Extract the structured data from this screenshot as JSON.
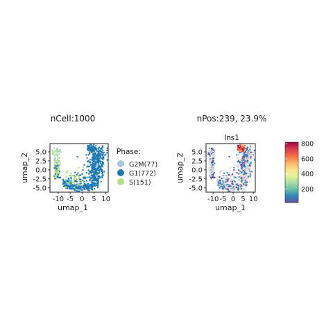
{
  "chart_data": [
    {
      "type": "scatter",
      "title": "nCell:1000",
      "xlabel": "umap_1",
      "ylabel": "umap_2",
      "xticks": [
        "-10",
        "-5",
        "0",
        "5",
        "10"
      ],
      "yticks": [
        "5.0",
        "2.5",
        "0.0",
        "-2.5",
        "-5.0"
      ],
      "xlim": [
        -13.5,
        11
      ],
      "ylim": [
        -6.2,
        7.3
      ],
      "legend": {
        "title": "Phase:",
        "position": "right",
        "items": [
          {
            "label": "G2M(77)",
            "color": "#a6c8e0"
          },
          {
            "label": "G1(772)",
            "color": "#1f78b4"
          },
          {
            "label": "S(151)",
            "color": "#b2df8a"
          }
        ]
      }
    },
    {
      "type": "scatter",
      "title": "nPos:239, 23.9%",
      "subtitle": "Ins1",
      "xlabel": "umap_1",
      "ylabel": "umap_2",
      "xticks": [
        "-10",
        "-5",
        "0",
        "5",
        "10"
      ],
      "yticks": [
        "5.0",
        "2.5",
        "0.0",
        "-2.5",
        "-5.0"
      ],
      "xlim": [
        -13.5,
        11
      ],
      "ylim": [
        -6.2,
        7.3
      ],
      "colorbar": {
        "ticks": [
          "800",
          "600",
          "400",
          "200"
        ],
        "values": [
          800,
          600,
          400,
          200
        ],
        "range": [
          20,
          820
        ],
        "colors": [
          "#5e4fa2",
          "#3288bd",
          "#66c2a5",
          "#abdda4",
          "#e6f598",
          "#fee08b",
          "#fdae61",
          "#f46d43",
          "#d53e4f",
          "#9e0142"
        ]
      },
      "negative_color": "#d9d9d9"
    }
  ]
}
